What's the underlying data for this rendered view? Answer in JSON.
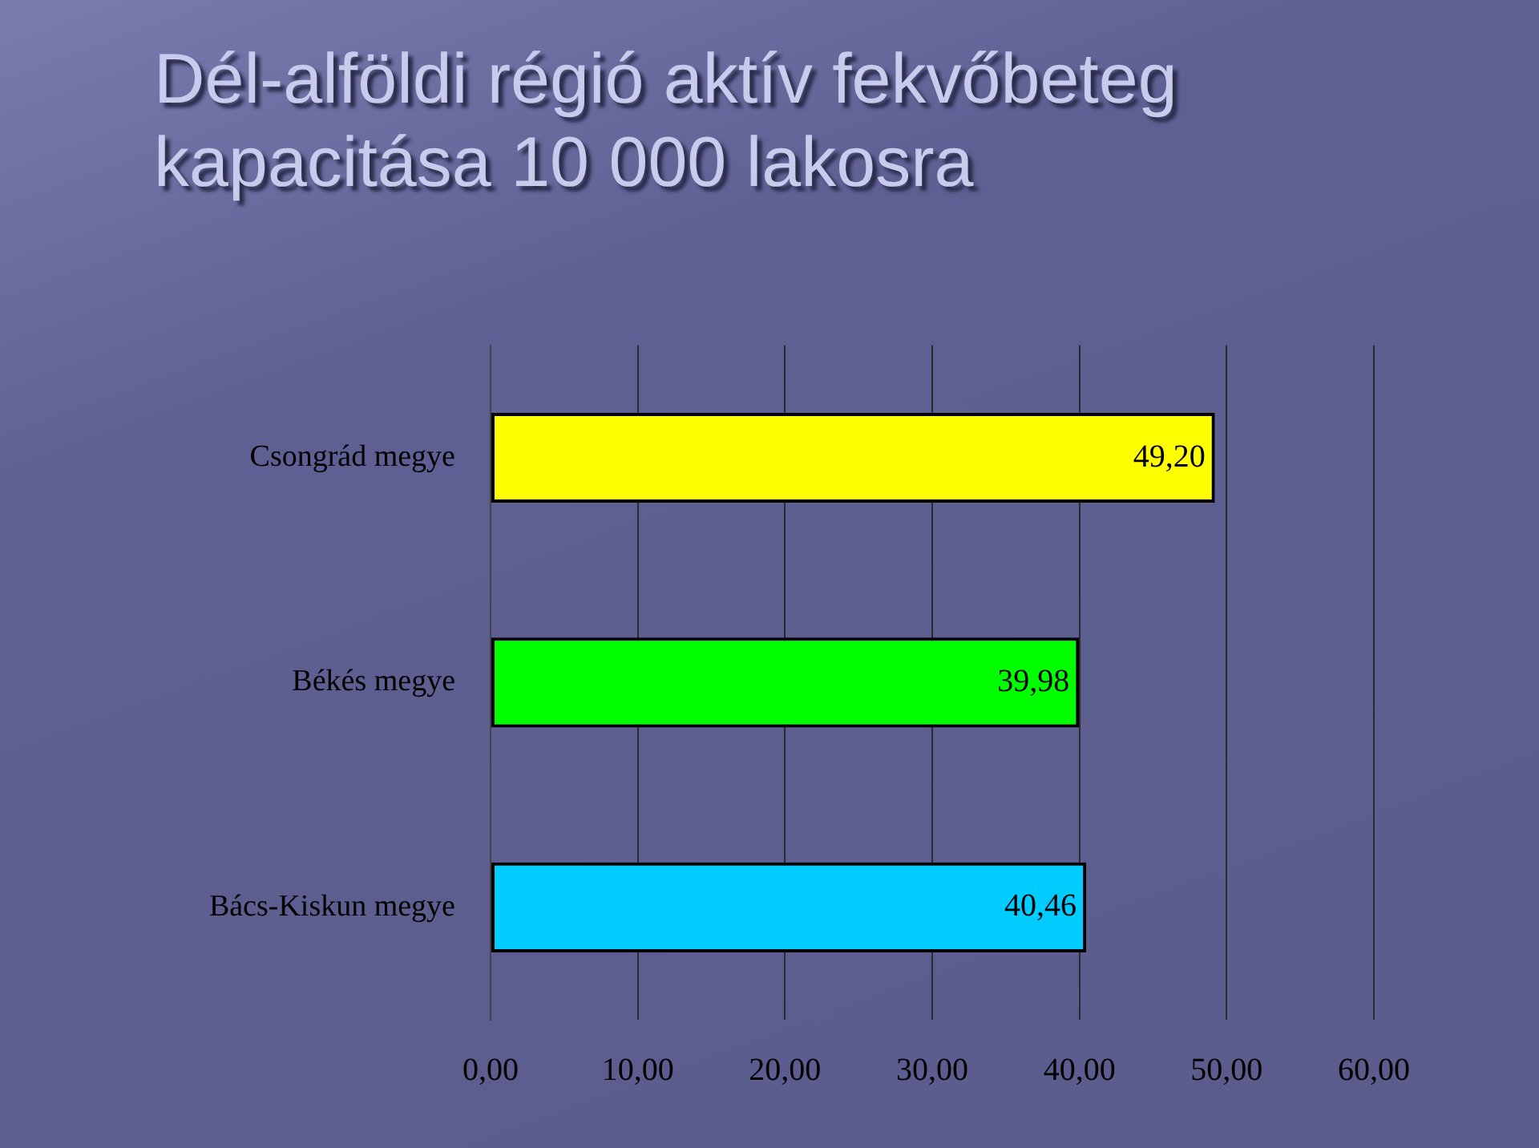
{
  "chart_data": {
    "type": "bar",
    "orientation": "horizontal",
    "title": "Dél-alföldi régió aktív fekvőbeteg kapacitása 10 000 lakosra",
    "categories": [
      "Csongrád megye",
      "Békés megye",
      "Bács-Kiskun megye"
    ],
    "values": [
      49.2,
      39.98,
      40.46
    ],
    "colors": [
      "#ffff00",
      "#00ff00",
      "#00ccff"
    ],
    "value_labels": [
      "49,20",
      "39,98",
      "40,46"
    ],
    "xlim": [
      0,
      60
    ],
    "xticks": [
      {
        "value": 0,
        "label": "0,00"
      },
      {
        "value": 10,
        "label": "10,00"
      },
      {
        "value": 20,
        "label": "20,00"
      },
      {
        "value": 30,
        "label": "30,00"
      },
      {
        "value": 40,
        "label": "40,00"
      },
      {
        "value": 50,
        "label": "50,00"
      },
      {
        "value": 60,
        "label": "60,00"
      }
    ],
    "grid": "x"
  }
}
